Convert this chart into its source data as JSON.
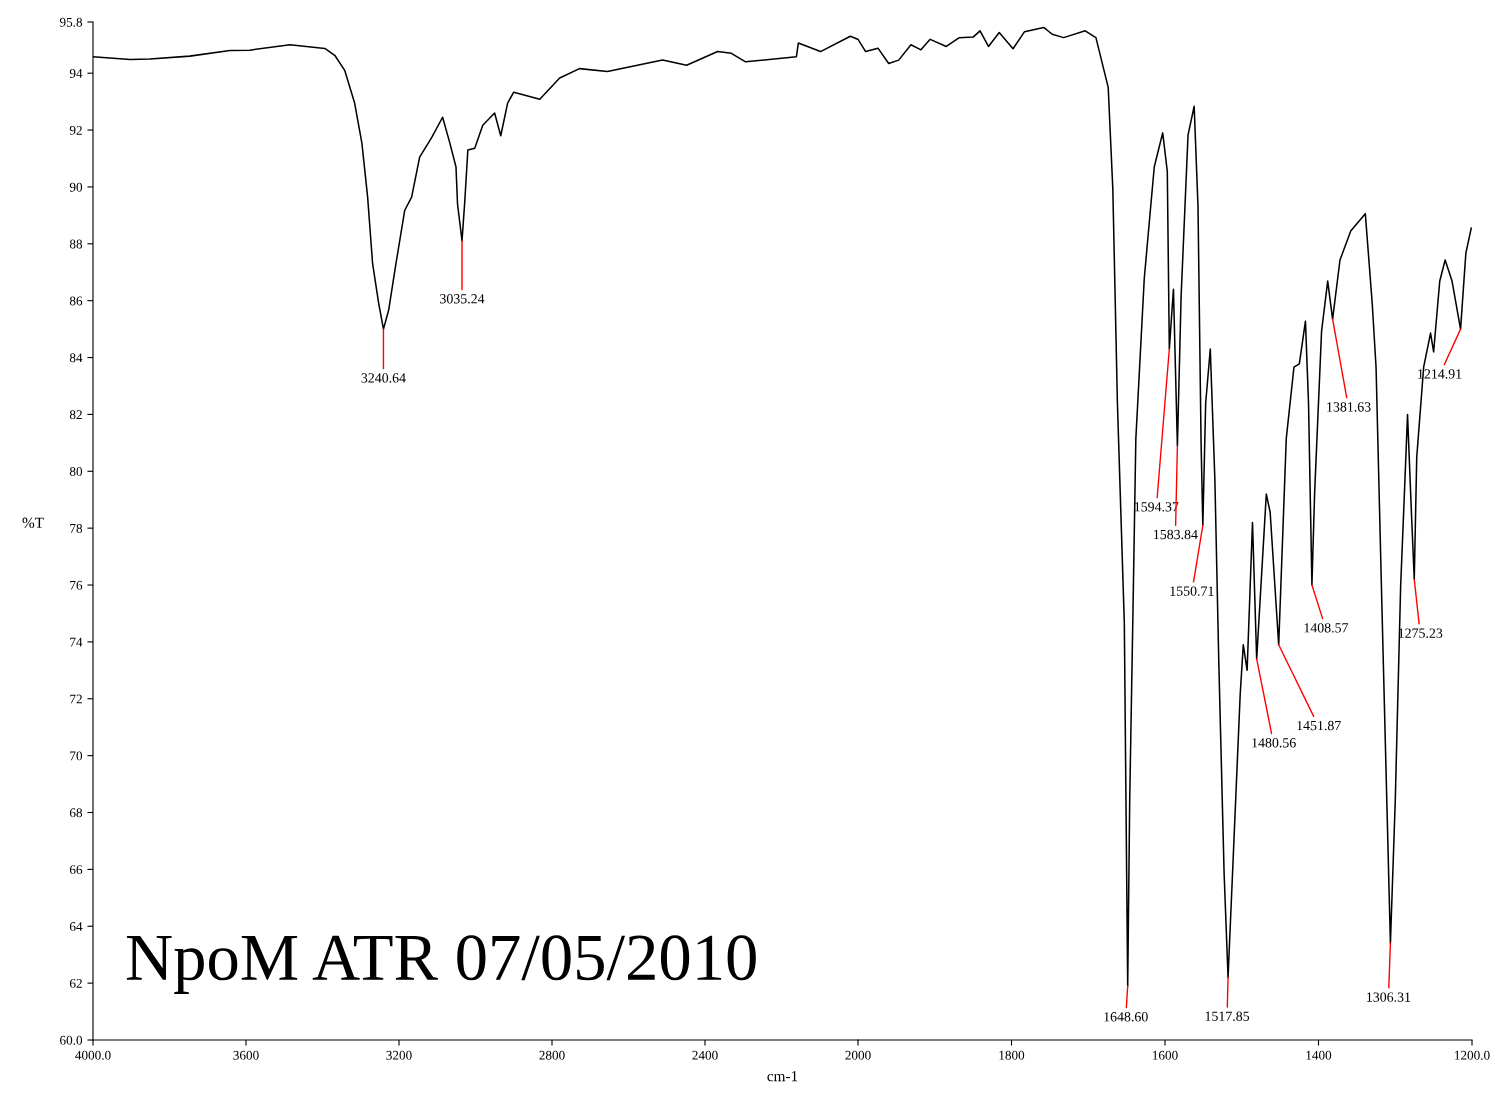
{
  "chart_data": [
    {
      "type": "line",
      "xlabel": "cm-1",
      "ylabel": "%T",
      "xlim": [
        4000,
        2000
      ],
      "xticks": [
        {
          "value": 4000,
          "label": "4000.0"
        },
        3600,
        3200,
        2800,
        2400,
        2000
      ],
      "ylim": [
        60,
        95.8
      ],
      "yticks": [
        {
          "value": 60,
          "label": "60.0"
        },
        62,
        64,
        66,
        68,
        70,
        72,
        74,
        76,
        78,
        80,
        82,
        84,
        86,
        88,
        90,
        92,
        94,
        {
          "value": 95.8,
          "label": "95.8"
        }
      ],
      "marker": "none",
      "line_style": "solid",
      "series": [
        {
          "color": "#000000",
          "x": [
            4000,
            3903,
            3851,
            3747,
            3642,
            3590,
            3485,
            3394,
            3368,
            3342,
            3316,
            3297,
            3282,
            3269,
            3253,
            3240.64,
            3227,
            3208,
            3185,
            3167,
            3146,
            3114,
            3086,
            3067,
            3051,
            3047,
            3035.24,
            3028,
            3020,
            3002,
            2981,
            2950,
            2934,
            2916,
            2900,
            2832,
            2780,
            2728,
            2655,
            2511,
            2448,
            2367,
            2331,
            2294,
            2161,
            2156,
            2098,
            2020,
            2000
          ],
          "values": [
            94.58,
            94.48,
            94.5,
            94.6,
            94.8,
            94.81,
            95.0,
            94.87,
            94.63,
            94.1,
            92.95,
            91.54,
            89.64,
            87.3,
            85.9,
            85.0,
            85.67,
            87.3,
            89.18,
            89.64,
            91.05,
            91.75,
            92.45,
            91.54,
            90.7,
            89.4,
            88.1,
            89.5,
            91.3,
            91.36,
            92.17,
            92.6,
            91.8,
            92.95,
            93.33,
            93.08,
            93.83,
            94.16,
            94.06,
            94.46,
            94.28,
            94.76,
            94.7,
            94.4,
            94.58,
            95.06,
            94.76,
            95.3,
            95.19
          ]
        }
      ],
      "annotations": [
        {
          "text": "3240.64",
          "x": 3240.64,
          "y": 85.0
        },
        {
          "text": "3035.24",
          "x": 3035.24,
          "y": 88.1
        },
        "NpoM ATR 07/05/2010"
      ]
    },
    {
      "type": "line",
      "xlim": [
        2000,
        1200
      ],
      "xticks": [
        1800,
        1600,
        1400,
        {
          "value": 1200,
          "label": "1200.0"
        }
      ],
      "ylim": [
        60,
        95.8
      ],
      "tick_labels": "x",
      "marker": "none",
      "line_style": "solid",
      "series": [
        {
          "color": "#000000",
          "x": [
            2000,
            1990,
            1974,
            1960,
            1947,
            1931,
            1918,
            1906,
            1885,
            1868,
            1850,
            1841,
            1830,
            1816,
            1798,
            1783,
            1758,
            1747,
            1732,
            1704,
            1690,
            1674,
            1668,
            1662,
            1653,
            1648.6,
            1646,
            1642,
            1638,
            1627,
            1614,
            1603,
            1597,
            1594.37,
            1589,
            1583.84,
            1579,
            1570,
            1562,
            1557,
            1553,
            1550.71,
            1547,
            1541,
            1535,
            1530,
            1523,
            1517.85,
            1511,
            1502,
            1498,
            1493,
            1486,
            1480.56,
            1468,
            1463,
            1451.87,
            1442,
            1432,
            1425,
            1417,
            1413,
            1408.57,
            1405,
            1396,
            1388,
            1381.63,
            1372,
            1358,
            1339,
            1330,
            1325,
            1318,
            1311,
            1306.31,
            1300,
            1293,
            1288,
            1284,
            1279,
            1275.23,
            1272,
            1263,
            1254,
            1250,
            1242,
            1235,
            1226,
            1214.91,
            1208,
            1201
          ],
          "values": [
            95.19,
            94.76,
            94.88,
            94.34,
            94.46,
            95.0,
            94.82,
            95.19,
            94.94,
            95.25,
            95.27,
            95.49,
            94.94,
            95.43,
            94.86,
            95.46,
            95.61,
            95.37,
            95.25,
            95.49,
            95.25,
            93.5,
            89.94,
            82.4,
            74.66,
            61.9,
            68.4,
            74.66,
            81.13,
            86.79,
            90.7,
            91.9,
            90.55,
            84.3,
            86.4,
            80.9,
            86.16,
            91.82,
            92.84,
            89.32,
            81.0,
            78.1,
            82.4,
            84.3,
            79.7,
            73.4,
            65.87,
            62.2,
            66.5,
            72.17,
            73.9,
            73.0,
            78.2,
            73.4,
            79.2,
            78.56,
            73.9,
            81.15,
            83.66,
            83.78,
            85.28,
            82.4,
            76.0,
            79.27,
            84.93,
            86.69,
            85.35,
            87.43,
            88.45,
            89.06,
            85.9,
            83.66,
            75.93,
            68.4,
            63.4,
            68.4,
            75.93,
            79.27,
            82.0,
            78.6,
            76.2,
            80.5,
            83.66,
            84.86,
            84.2,
            86.69,
            87.43,
            86.69,
            85.0,
            87.67,
            88.55
          ]
        }
      ],
      "annotations": [
        {
          "text": "1648.60",
          "x": 1648.6,
          "y": 61.9
        },
        {
          "text": "1594.37",
          "x": 1594.37,
          "y": 84.3
        },
        {
          "text": "1583.84",
          "x": 1583.84,
          "y": 80.9
        },
        {
          "text": "1550.71",
          "x": 1550.71,
          "y": 78.1
        },
        {
          "text": "1517.85",
          "x": 1517.85,
          "y": 62.2
        },
        {
          "text": "1480.56",
          "x": 1480.56,
          "y": 73.4
        },
        {
          "text": "1451.87",
          "x": 1451.87,
          "y": 73.9
        },
        {
          "text": "1408.57",
          "x": 1408.57,
          "y": 76.0
        },
        {
          "text": "1381.63",
          "x": 1381.63,
          "y": 85.35
        },
        {
          "text": "1306.31",
          "x": 1306.31,
          "y": 63.4
        },
        {
          "text": "1275.23",
          "x": 1275.23,
          "y": 76.2
        },
        {
          "text": "1214.91",
          "x": 1214.91,
          "y": 85.0
        }
      ]
    }
  ]
}
